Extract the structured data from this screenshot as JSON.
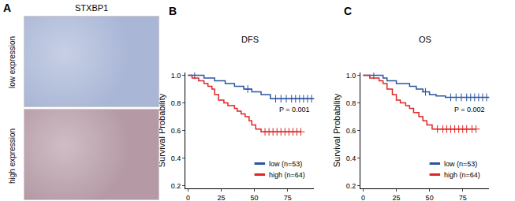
{
  "image_panel": {
    "panel": "A",
    "title": "STXBP1",
    "rows": [
      "low expression",
      "high expression"
    ]
  },
  "chart_data": [
    {
      "type": "line",
      "panel": "B",
      "title": "DFS",
      "y_label": "Survival Probability",
      "annotations": [
        "P = 0.001"
      ],
      "xlim": [
        -2,
        95
      ],
      "xticks": [
        0,
        25,
        50,
        75
      ],
      "ylim": [
        0.18,
        1.02
      ],
      "yticks": [
        0.2,
        0.4,
        0.6,
        0.8,
        {
          "value": 1,
          "label": "1.0"
        }
      ],
      "line_style": "step",
      "marker": "cross",
      "series": [
        {
          "name": "low (n=53)",
          "color": "#2b559e",
          "x": [
            0,
            12,
            20,
            28,
            35,
            42,
            48,
            55,
            62,
            95
          ],
          "values": [
            1.0,
            0.98,
            0.96,
            0.94,
            0.92,
            0.9,
            0.88,
            0.86,
            0.83,
            0.83
          ],
          "censored_x": [
            5,
            45,
            66,
            70,
            74,
            78,
            81,
            84,
            87,
            90,
            93
          ]
        },
        {
          "name": "high (n=64)",
          "color": "#e02424",
          "x": [
            0,
            3,
            8,
            12,
            15,
            18,
            20,
            23,
            27,
            30,
            35,
            37,
            40,
            43,
            46,
            48,
            51,
            55,
            85
          ],
          "values": [
            1.0,
            0.98,
            0.96,
            0.94,
            0.92,
            0.9,
            0.86,
            0.82,
            0.8,
            0.78,
            0.76,
            0.74,
            0.72,
            0.7,
            0.67,
            0.64,
            0.61,
            0.59,
            0.59
          ],
          "censored_x": [
            58,
            61,
            64,
            67,
            70,
            73,
            76,
            79,
            82,
            85
          ]
        }
      ]
    },
    {
      "type": "line",
      "panel": "C",
      "title": "OS",
      "y_label": "Survival Probability",
      "annotations": [
        "P = 0.002"
      ],
      "xlim": [
        -2,
        95
      ],
      "xticks": [
        0,
        25,
        50,
        75
      ],
      "ylim": [
        0.18,
        1.02
      ],
      "yticks": [
        0.2,
        0.4,
        0.6,
        0.8,
        {
          "value": 1,
          "label": "1.0"
        }
      ],
      "line_style": "step",
      "marker": "cross",
      "series": [
        {
          "name": "low (n=53)",
          "color": "#2b559e",
          "x": [
            0,
            15,
            18,
            25,
            35,
            40,
            45,
            50,
            55,
            62,
            95
          ],
          "values": [
            1.0,
            0.98,
            0.96,
            0.94,
            0.92,
            0.9,
            0.88,
            0.86,
            0.85,
            0.84,
            0.84
          ],
          "censored_x": [
            8,
            47,
            66,
            70,
            74,
            78,
            81,
            84,
            87,
            90,
            93
          ]
        },
        {
          "name": "high (n=64)",
          "color": "#e02424",
          "x": [
            0,
            5,
            12,
            15,
            18,
            22,
            25,
            28,
            32,
            35,
            38,
            42,
            45,
            48,
            52,
            85
          ],
          "values": [
            1.0,
            0.98,
            0.96,
            0.94,
            0.9,
            0.86,
            0.82,
            0.8,
            0.78,
            0.76,
            0.73,
            0.7,
            0.67,
            0.64,
            0.61,
            0.61
          ],
          "censored_x": [
            56,
            60,
            63,
            66,
            69,
            72,
            75,
            78,
            82,
            85
          ]
        }
      ]
    }
  ]
}
